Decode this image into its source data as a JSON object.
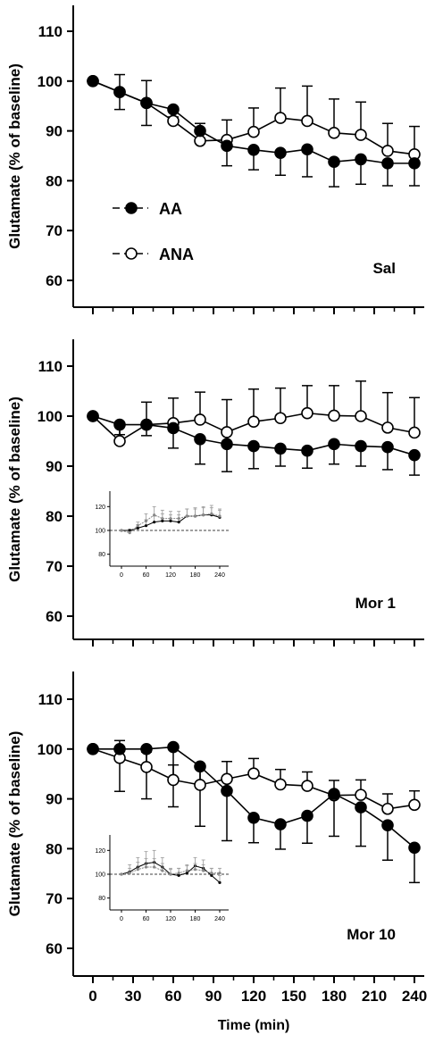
{
  "chart_data": {
    "type": "line",
    "xlabel": "Time (min)",
    "x_ticks": [
      0,
      30,
      60,
      90,
      120,
      150,
      180,
      210,
      240
    ],
    "legend": {
      "items": [
        "AA",
        "ANA"
      ],
      "placement": "upper-left of top panel"
    },
    "panels": [
      {
        "label": "Sal",
        "ylabel": "Glutamate (% of baseline)",
        "ylim": [
          55,
          115
        ],
        "y_ticks": [
          60,
          70,
          80,
          90,
          100,
          110
        ],
        "x": [
          0,
          20,
          40,
          60,
          80,
          100,
          120,
          140,
          160,
          180,
          200,
          220,
          240
        ],
        "series": [
          {
            "name": "AA",
            "marker": "filled",
            "values": [
              100,
              97.8,
              95.6,
              94.3,
              90.0,
              87.0,
              86.2,
              85.6,
              86.3,
              83.8,
              84.3,
              83.5,
              83.5
            ],
            "err": [
              0,
              3.5,
              4.5,
              1.5,
              2.3,
              4.0,
              4.0,
              4.5,
              5.5,
              5.0,
              5.0,
              4.5,
              4.5
            ]
          },
          {
            "name": "ANA",
            "marker": "open",
            "values": [
              100,
              97.8,
              95.6,
              92.0,
              88.0,
              88.2,
              89.8,
              92.6,
              92.0,
              89.6,
              89.2,
              86.0,
              85.3
            ],
            "err": [
              0,
              3.5,
              4.5,
              2.8,
              3.5,
              4.0,
              4.8,
              6.0,
              7.0,
              6.8,
              6.6,
              5.5,
              5.6
            ]
          }
        ]
      },
      {
        "label": "Mor 1",
        "ylabel": "Glutamate (% of baseline)",
        "ylim": [
          55,
          115
        ],
        "y_ticks": [
          60,
          70,
          80,
          90,
          100,
          110
        ],
        "x": [
          0,
          20,
          40,
          60,
          80,
          100,
          120,
          140,
          160,
          180,
          200,
          220,
          240
        ],
        "series": [
          {
            "name": "AA",
            "marker": "filled",
            "values": [
              100,
              98.3,
              98.3,
              97.6,
              95.4,
              94.4,
              94.0,
              93.5,
              93.1,
              94.4,
              94.0,
              93.8,
              92.2
            ],
            "err": [
              0,
              2.0,
              2.2,
              4.0,
              5.0,
              5.5,
              4.5,
              3.5,
              3.5,
              4.0,
              4.0,
              4.5,
              4.0
            ]
          },
          {
            "name": "ANA",
            "marker": "open",
            "values": [
              100,
              95.0,
              98.3,
              98.6,
              99.3,
              96.8,
              98.9,
              99.6,
              100.6,
              100.1,
              100.0,
              97.7,
              96.7
            ],
            "err": [
              0,
              3.5,
              4.5,
              5.0,
              5.5,
              6.5,
              6.5,
              6.0,
              5.5,
              6.0,
              7.0,
              7.0,
              7.0
            ]
          }
        ],
        "inset": {
          "ylim": [
            70,
            130
          ],
          "y_ticks": [
            80,
            100,
            120
          ],
          "x_ticks": [
            0,
            60,
            120,
            180,
            240
          ],
          "reference_line": 100,
          "x": [
            0,
            20,
            40,
            60,
            80,
            100,
            120,
            140,
            160,
            180,
            200,
            220,
            240
          ],
          "series": [
            {
              "name": "AA",
              "values": [
                100,
                100,
                102,
                104,
                107,
                108,
                108,
                107,
                112,
                112,
                113,
                113,
                111
              ],
              "err": [
                0,
                1,
                3,
                5,
                5,
                6,
                5,
                6,
                6,
                6,
                6,
                6,
                6
              ]
            },
            {
              "name": "ANA",
              "values": [
                100,
                98,
                104,
                108,
                113,
                110,
                110,
                110,
                112,
                112,
                113,
                114,
                112
              ],
              "err": [
                0,
                1,
                3,
                6,
                7,
                7,
                6,
                6,
                6,
                7,
                7,
                7,
                6
              ]
            }
          ]
        }
      },
      {
        "label": "Mor 10",
        "ylabel": "Glutamate (% of baseline)",
        "ylim": [
          55,
          115
        ],
        "y_ticks": [
          60,
          70,
          80,
          90,
          100,
          110
        ],
        "x": [
          0,
          20,
          40,
          60,
          80,
          100,
          120,
          140,
          160,
          180,
          200,
          220,
          240
        ],
        "series": [
          {
            "name": "AA",
            "marker": "filled",
            "values": [
              100,
              100,
              100,
              100.4,
              96.5,
              91.6,
              86.2,
              84.9,
              86.6,
              91.0,
              88.3,
              84.7,
              80.2
            ],
            "err": [
              0,
              8.5,
              10.0,
              12.0,
              12.0,
              10.0,
              5.0,
              5.0,
              5.5,
              8.5,
              7.8,
              7.0,
              7.0
            ]
          },
          {
            "name": "ANA",
            "marker": "open",
            "values": [
              100,
              98.2,
              96.4,
              93.8,
              92.8,
              94.0,
              95.1,
              92.9,
              92.6,
              90.7,
              90.8,
              88.0,
              88.8
            ],
            "err": [
              0,
              3.5,
              3.0,
              3.0,
              3.5,
              3.5,
              3.0,
              3.0,
              2.8,
              3.0,
              3.0,
              3.0,
              2.8
            ]
          }
        ],
        "inset": {
          "ylim": [
            70,
            130
          ],
          "y_ticks": [
            80,
            100,
            120
          ],
          "x_ticks": [
            0,
            60,
            120,
            180,
            240
          ],
          "reference_line": 100,
          "x": [
            0,
            20,
            40,
            60,
            80,
            100,
            120,
            140,
            160,
            180,
            200,
            220,
            240
          ],
          "series": [
            {
              "name": "AA",
              "values": [
                100,
                102,
                106,
                109,
                110,
                106,
                100,
                99,
                101,
                107,
                105,
                99,
                93
              ],
              "err": [
                0,
                6,
                8,
                10,
                10,
                8,
                5,
                6,
                6,
                7,
                7,
                6,
                6
              ]
            },
            {
              "name": "ANA",
              "values": [
                100,
                101,
                104,
                106,
                106,
                103,
                100,
                101,
                103,
                104,
                103,
                101,
                101
              ],
              "err": [
                0,
                4,
                6,
                7,
                7,
                6,
                4,
                4,
                5,
                5,
                5,
                4,
                4
              ]
            }
          ]
        }
      }
    ]
  }
}
